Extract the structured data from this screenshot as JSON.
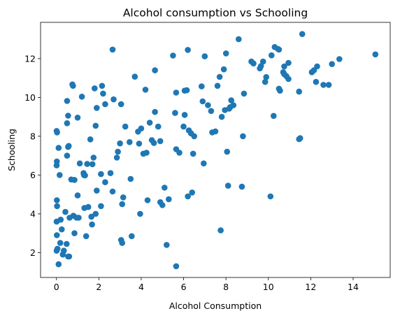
{
  "chart_data": {
    "type": "scatter",
    "title": "Alcohol consumption vs Schooling",
    "xlabel": "Alcohol Consumption",
    "ylabel": "Schooling",
    "xlim": [
      -0.75,
      15.75
    ],
    "ylim": [
      0.72,
      13.87
    ],
    "xticks": [
      0,
      2,
      4,
      6,
      8,
      10,
      12,
      14
    ],
    "yticks": [
      2,
      4,
      6,
      8,
      10,
      12
    ],
    "grid": false,
    "marker_color": "#1f77b4",
    "points": [
      [
        0.01,
        8.27
      ],
      [
        0.03,
        8.2
      ],
      [
        0.02,
        6.7
      ],
      [
        0.01,
        6.5
      ],
      [
        0.02,
        4.7
      ],
      [
        0.03,
        4.4
      ],
      [
        0.01,
        3.6
      ],
      [
        0.02,
        2.9
      ],
      [
        0.01,
        2.1
      ],
      [
        0.05,
        2.2
      ],
      [
        0.1,
        7.4
      ],
      [
        0.15,
        6.0
      ],
      [
        0.2,
        3.7
      ],
      [
        0.18,
        2.5
      ],
      [
        0.1,
        1.4
      ],
      [
        0.25,
        3.2
      ],
      [
        0.3,
        1.9
      ],
      [
        0.35,
        2.1
      ],
      [
        0.42,
        4.1
      ],
      [
        0.48,
        2.45
      ],
      [
        0.5,
        9.82
      ],
      [
        0.55,
        9.06
      ],
      [
        0.5,
        8.67
      ],
      [
        0.55,
        7.45
      ],
      [
        0.58,
        7.5
      ],
      [
        0.5,
        7.0
      ],
      [
        0.55,
        1.8
      ],
      [
        0.6,
        1.8
      ],
      [
        0.7,
        5.77
      ],
      [
        0.62,
        3.8
      ],
      [
        0.75,
        10.67
      ],
      [
        0.78,
        10.6
      ],
      [
        0.8,
        3.9
      ],
      [
        0.85,
        5.75
      ],
      [
        0.85,
        3.0
      ],
      [
        1.0,
        8.96
      ],
      [
        0.95,
        3.8
      ],
      [
        1.0,
        4.95
      ],
      [
        1.1,
        6.6
      ],
      [
        1.05,
        3.8
      ],
      [
        1.2,
        10.04
      ],
      [
        1.28,
        6.1
      ],
      [
        1.32,
        4.3
      ],
      [
        1.3,
        6.0
      ],
      [
        1.35,
        5.98
      ],
      [
        1.4,
        2.85
      ],
      [
        1.45,
        6.57
      ],
      [
        1.5,
        4.35
      ],
      [
        1.6,
        7.84
      ],
      [
        1.7,
        6.56
      ],
      [
        1.65,
        3.85
      ],
      [
        1.68,
        3.45
      ],
      [
        1.8,
        10.47
      ],
      [
        1.75,
        6.9
      ],
      [
        1.85,
        8.54
      ],
      [
        1.9,
        9.46
      ],
      [
        1.9,
        5.2
      ],
      [
        1.85,
        4.0
      ],
      [
        2.1,
        6.05
      ],
      [
        2.1,
        4.4
      ],
      [
        2.15,
        10.6
      ],
      [
        2.2,
        10.2
      ],
      [
        2.3,
        9.65
      ],
      [
        2.3,
        5.63
      ],
      [
        2.55,
        6.1
      ],
      [
        2.65,
        12.47
      ],
      [
        2.7,
        9.9
      ],
      [
        2.65,
        5.15
      ],
      [
        2.85,
        6.9
      ],
      [
        2.9,
        7.2
      ],
      [
        3.0,
        7.63
      ],
      [
        3.05,
        9.65
      ],
      [
        3.05,
        2.65
      ],
      [
        3.1,
        4.5
      ],
      [
        3.1,
        2.5
      ],
      [
        3.15,
        4.85
      ],
      [
        3.25,
        8.5
      ],
      [
        3.45,
        7.7
      ],
      [
        3.55,
        2.85
      ],
      [
        3.5,
        5.8
      ],
      [
        3.7,
        11.07
      ],
      [
        3.85,
        8.24
      ],
      [
        3.9,
        7.62
      ],
      [
        3.95,
        4.0
      ],
      [
        4.0,
        8.4
      ],
      [
        4.1,
        7.1
      ],
      [
        4.2,
        10.4
      ],
      [
        4.25,
        7.15
      ],
      [
        4.3,
        4.7
      ],
      [
        4.4,
        8.7
      ],
      [
        4.5,
        7.8
      ],
      [
        4.6,
        7.65
      ],
      [
        4.65,
        11.4
      ],
      [
        4.65,
        9.25
      ],
      [
        4.8,
        8.5
      ],
      [
        4.9,
        4.6
      ],
      [
        4.9,
        7.75
      ],
      [
        5.0,
        4.45
      ],
      [
        5.1,
        5.35
      ],
      [
        5.2,
        2.4
      ],
      [
        5.3,
        4.75
      ],
      [
        5.5,
        12.16
      ],
      [
        5.6,
        9.2
      ],
      [
        5.65,
        7.33
      ],
      [
        5.65,
        10.25
      ],
      [
        5.65,
        1.3
      ],
      [
        5.8,
        7.15
      ],
      [
        6.0,
        8.5
      ],
      [
        6.05,
        10.35
      ],
      [
        6.05,
        9.1
      ],
      [
        6.15,
        10.37
      ],
      [
        6.2,
        12.45
      ],
      [
        6.2,
        4.9
      ],
      [
        6.25,
        8.3
      ],
      [
        6.35,
        8.15
      ],
      [
        6.4,
        5.1
      ],
      [
        6.45,
        7.1
      ],
      [
        6.5,
        8.0
      ],
      [
        6.85,
        10.57
      ],
      [
        6.9,
        9.8
      ],
      [
        6.95,
        6.6
      ],
      [
        7.0,
        12.12
      ],
      [
        7.15,
        9.6
      ],
      [
        7.3,
        9.3
      ],
      [
        7.35,
        8.2
      ],
      [
        7.5,
        8.25
      ],
      [
        7.6,
        10.6
      ],
      [
        7.7,
        11.06
      ],
      [
        7.75,
        3.15
      ],
      [
        7.8,
        9.0
      ],
      [
        7.9,
        11.45
      ],
      [
        7.95,
        9.35
      ],
      [
        8.0,
        12.27
      ],
      [
        8.05,
        7.2
      ],
      [
        8.1,
        5.45
      ],
      [
        8.15,
        9.42
      ],
      [
        8.2,
        9.5
      ],
      [
        8.25,
        9.85
      ],
      [
        8.35,
        9.6
      ],
      [
        8.6,
        13.0
      ],
      [
        8.75,
        5.4
      ],
      [
        8.8,
        8.0
      ],
      [
        8.85,
        10.2
      ],
      [
        9.2,
        11.85
      ],
      [
        9.3,
        11.75
      ],
      [
        9.6,
        11.5
      ],
      [
        9.75,
        11.85
      ],
      [
        9.65,
        11.62
      ],
      [
        9.85,
        10.8
      ],
      [
        9.9,
        11.05
      ],
      [
        10.1,
        4.9
      ],
      [
        10.15,
        12.17
      ],
      [
        10.25,
        9.05
      ],
      [
        10.3,
        12.6
      ],
      [
        10.45,
        12.5
      ],
      [
        10.5,
        12.47
      ],
      [
        10.5,
        10.45
      ],
      [
        10.55,
        10.35
      ],
      [
        10.7,
        11.3
      ],
      [
        10.75,
        11.2
      ],
      [
        10.75,
        11.6
      ],
      [
        10.85,
        11.1
      ],
      [
        10.95,
        11.78
      ],
      [
        10.95,
        10.95
      ],
      [
        11.45,
        10.3
      ],
      [
        11.45,
        7.85
      ],
      [
        11.5,
        7.9
      ],
      [
        11.6,
        13.27
      ],
      [
        12.05,
        11.3
      ],
      [
        12.15,
        11.4
      ],
      [
        12.25,
        10.8
      ],
      [
        12.3,
        11.6
      ],
      [
        12.6,
        10.65
      ],
      [
        12.85,
        10.65
      ],
      [
        13.0,
        11.72
      ],
      [
        13.35,
        11.98
      ],
      [
        15.05,
        12.22
      ]
    ]
  }
}
